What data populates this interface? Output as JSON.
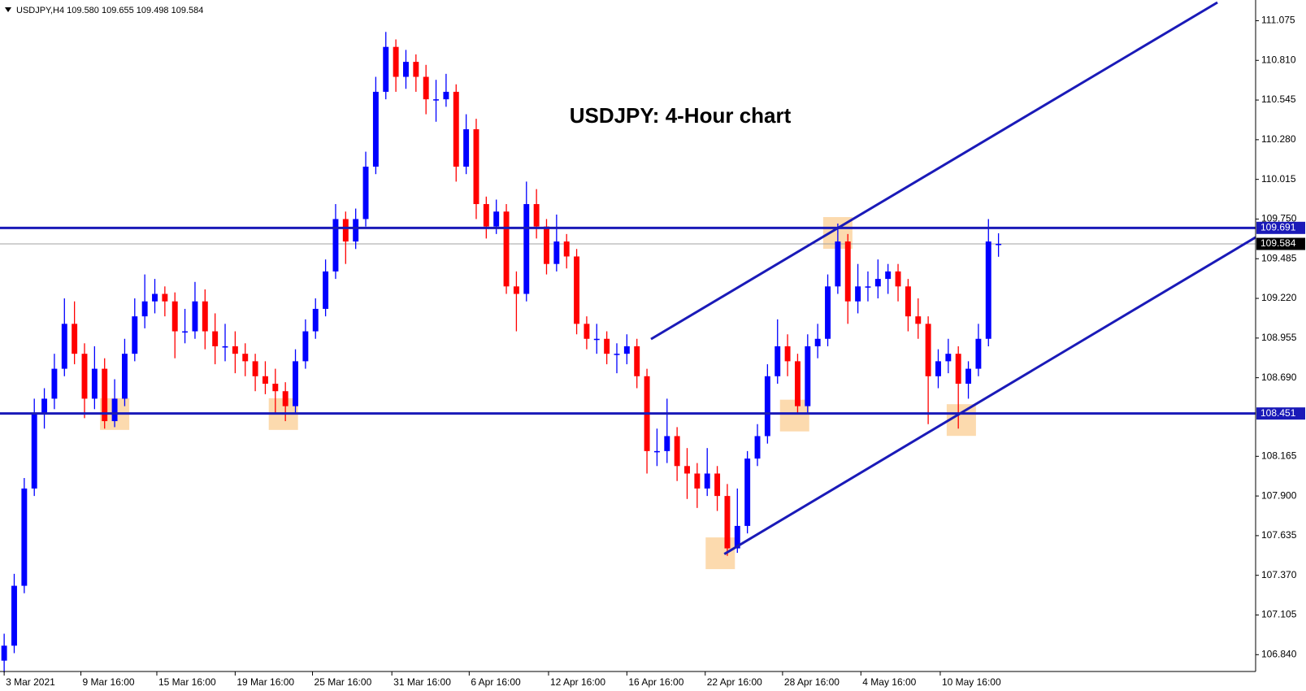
{
  "chart_data": {
    "type": "candlestick",
    "header": "USDJPY,H4  109.580 109.655 109.498 109.584",
    "title": "USDJPY: 4-Hour chart",
    "up_color": "#0000ff",
    "down_color": "#ff0000",
    "line_color": "#1a1ab8",
    "highlight_color": "#fbd3a0",
    "xlim": [
      -0.415,
      124.6
    ],
    "ylim": [
      106.733,
      111.197
    ],
    "yticks": [
      111.075,
      {
        "value": 110.81,
        "label": "110.810"
      },
      110.545,
      {
        "value": 110.28,
        "label": "110.280"
      },
      110.015,
      {
        "value": 109.75,
        "label": "109.750"
      },
      109.485,
      {
        "value": 109.22,
        "label": "109.220"
      },
      108.955,
      {
        "value": 108.69,
        "label": "108.690"
      },
      108.165,
      {
        "value": 107.9,
        "label": "107.900"
      },
      107.635,
      {
        "value": 107.37,
        "label": "107.370"
      },
      107.105,
      {
        "value": 106.84,
        "label": "106.840"
      }
    ],
    "xticks": [
      {
        "value": 0,
        "label": "3 Mar 2021"
      },
      {
        "value": 7.64,
        "label": "9 Mar 16:00"
      },
      {
        "value": 15.2,
        "label": "15 Mar 16:00"
      },
      {
        "value": 23.0,
        "label": "19 Mar 16:00"
      },
      {
        "value": 30.7,
        "label": "25 Mar 16:00"
      },
      {
        "value": 38.6,
        "label": "31 Mar 16:00"
      },
      {
        "value": 46.3,
        "label": "6 Apr 16:00"
      },
      {
        "value": 54.2,
        "label": "12 Apr 16:00"
      },
      {
        "value": 62.0,
        "label": "16 Apr 16:00"
      },
      {
        "value": 69.8,
        "label": "22 Apr 16:00"
      },
      {
        "value": 77.5,
        "label": "28 Apr 16:00"
      },
      {
        "value": 85.3,
        "label": "4 May 16:00"
      },
      {
        "value": 93.2,
        "label": "10 May 16:00"
      }
    ],
    "levels": [
      109.691,
      108.451
    ],
    "current_price": 109.584,
    "trendlines": [
      {
        "x": [
          64.4,
          120.8
        ],
        "y": [
          108.948,
          111.197
        ]
      },
      {
        "x": [
          71.7,
          124.6
        ],
        "y": [
          107.512,
          109.628
        ]
      }
    ],
    "highlights": [
      {
        "x": 11.0,
        "y": 108.45
      },
      {
        "x": 27.8,
        "y": 108.45
      },
      {
        "x": 71.3,
        "y": 107.52
      },
      {
        "x": 78.7,
        "y": 108.44
      },
      {
        "x": 83.0,
        "y": 109.66
      },
      {
        "x": 95.3,
        "y": 108.41
      }
    ],
    "ohlc": [
      [
        106.8,
        106.98,
        106.72,
        106.9
      ],
      [
        106.9,
        107.38,
        106.85,
        107.3
      ],
      [
        107.3,
        108.02,
        107.25,
        107.95
      ],
      [
        107.95,
        108.55,
        107.9,
        108.45
      ],
      [
        108.45,
        108.62,
        108.35,
        108.55
      ],
      [
        108.55,
        108.85,
        108.48,
        108.75
      ],
      [
        108.75,
        109.22,
        108.7,
        109.05
      ],
      [
        109.05,
        109.2,
        108.78,
        108.85
      ],
      [
        108.85,
        108.92,
        108.42,
        108.55
      ],
      [
        108.55,
        108.9,
        108.48,
        108.75
      ],
      [
        108.75,
        108.82,
        108.35,
        108.4
      ],
      [
        108.4,
        108.68,
        108.36,
        108.55
      ],
      [
        108.55,
        108.95,
        108.5,
        108.85
      ],
      [
        108.85,
        109.22,
        108.8,
        109.1
      ],
      [
        109.1,
        109.38,
        109.02,
        109.2
      ],
      [
        109.2,
        109.35,
        109.12,
        109.25
      ],
      [
        109.25,
        109.3,
        109.1,
        109.2
      ],
      [
        109.2,
        109.26,
        108.82,
        109.0
      ],
      [
        109.0,
        109.15,
        108.92,
        109.0
      ],
      [
        109.0,
        109.33,
        108.95,
        109.2
      ],
      [
        109.2,
        109.28,
        108.88,
        109.0
      ],
      [
        109.0,
        109.12,
        108.78,
        108.9
      ],
      [
        108.9,
        109.05,
        108.8,
        108.9
      ],
      [
        108.9,
        109.0,
        108.72,
        108.85
      ],
      [
        108.85,
        108.92,
        108.7,
        108.8
      ],
      [
        108.8,
        108.85,
        108.6,
        108.7
      ],
      [
        108.7,
        108.8,
        108.58,
        108.65
      ],
      [
        108.65,
        108.75,
        108.45,
        108.6
      ],
      [
        108.6,
        108.66,
        108.4,
        108.5
      ],
      [
        108.5,
        108.88,
        108.45,
        108.8
      ],
      [
        108.8,
        109.08,
        108.75,
        109.0
      ],
      [
        109.0,
        109.22,
        108.95,
        109.15
      ],
      [
        109.15,
        109.48,
        109.1,
        109.4
      ],
      [
        109.4,
        109.85,
        109.35,
        109.75
      ],
      [
        109.75,
        109.8,
        109.45,
        109.6
      ],
      [
        109.6,
        109.82,
        109.55,
        109.75
      ],
      [
        109.75,
        110.2,
        109.7,
        110.1
      ],
      [
        110.1,
        110.7,
        110.05,
        110.6
      ],
      [
        110.6,
        111.0,
        110.55,
        110.9
      ],
      [
        110.9,
        110.95,
        110.6,
        110.7
      ],
      [
        110.7,
        110.88,
        110.62,
        110.8
      ],
      [
        110.8,
        110.85,
        110.6,
        110.7
      ],
      [
        110.7,
        110.78,
        110.45,
        110.55
      ],
      [
        110.55,
        110.68,
        110.4,
        110.55
      ],
      [
        110.55,
        110.72,
        110.5,
        110.6
      ],
      [
        110.6,
        110.65,
        110.0,
        110.1
      ],
      [
        110.1,
        110.45,
        110.05,
        110.35
      ],
      [
        110.35,
        110.42,
        109.75,
        109.85
      ],
      [
        109.85,
        109.9,
        109.62,
        109.7
      ],
      [
        109.7,
        109.88,
        109.65,
        109.8
      ],
      [
        109.8,
        109.85,
        109.25,
        109.3
      ],
      [
        109.3,
        109.4,
        109.0,
        109.25
      ],
      [
        109.25,
        110.0,
        109.2,
        109.85
      ],
      [
        109.85,
        109.95,
        109.62,
        109.7
      ],
      [
        109.7,
        109.75,
        109.38,
        109.45
      ],
      [
        109.45,
        109.78,
        109.4,
        109.6
      ],
      [
        109.6,
        109.65,
        109.42,
        109.5
      ],
      [
        109.5,
        109.55,
        108.98,
        109.05
      ],
      [
        109.05,
        109.1,
        108.88,
        108.95
      ],
      [
        108.95,
        109.05,
        108.85,
        108.95
      ],
      [
        108.95,
        109.0,
        108.78,
        108.85
      ],
      [
        108.85,
        108.92,
        108.72,
        108.85
      ],
      [
        108.85,
        108.98,
        108.78,
        108.9
      ],
      [
        108.9,
        108.95,
        108.62,
        108.7
      ],
      [
        108.7,
        108.75,
        108.05,
        108.2
      ],
      [
        108.2,
        108.35,
        108.1,
        108.2
      ],
      [
        108.2,
        108.55,
        108.12,
        108.3
      ],
      [
        108.3,
        108.36,
        108.0,
        108.1
      ],
      [
        108.1,
        108.22,
        107.88,
        108.05
      ],
      [
        108.05,
        108.12,
        107.82,
        107.95
      ],
      [
        107.95,
        108.22,
        107.9,
        108.05
      ],
      [
        108.05,
        108.1,
        107.8,
        107.9
      ],
      [
        107.9,
        107.98,
        107.5,
        107.55
      ],
      [
        107.55,
        107.95,
        107.52,
        107.7
      ],
      [
        107.7,
        108.2,
        107.65,
        108.15
      ],
      [
        108.15,
        108.38,
        108.1,
        108.3
      ],
      [
        108.3,
        108.78,
        108.25,
        108.7
      ],
      [
        108.7,
        109.08,
        108.65,
        108.9
      ],
      [
        108.9,
        108.98,
        108.7,
        108.8
      ],
      [
        108.8,
        108.85,
        108.45,
        108.5
      ],
      [
        108.5,
        108.98,
        108.45,
        108.9
      ],
      [
        108.9,
        109.05,
        108.82,
        108.95
      ],
      [
        108.95,
        109.38,
        108.9,
        109.3
      ],
      [
        109.3,
        109.72,
        109.25,
        109.6
      ],
      [
        109.6,
        109.65,
        109.05,
        109.2
      ],
      [
        109.2,
        109.45,
        109.12,
        109.3
      ],
      [
        109.3,
        109.4,
        109.2,
        109.3
      ],
      [
        109.3,
        109.48,
        109.22,
        109.35
      ],
      [
        109.35,
        109.45,
        109.25,
        109.4
      ],
      [
        109.4,
        109.45,
        109.2,
        109.3
      ],
      [
        109.3,
        109.35,
        109.0,
        109.1
      ],
      [
        109.1,
        109.22,
        108.95,
        109.05
      ],
      [
        109.05,
        109.1,
        108.38,
        108.7
      ],
      [
        108.7,
        108.88,
        108.62,
        108.8
      ],
      [
        108.8,
        108.95,
        108.72,
        108.85
      ],
      [
        108.85,
        108.9,
        108.35,
        108.65
      ],
      [
        108.65,
        108.8,
        108.55,
        108.75
      ],
      [
        108.75,
        109.05,
        108.7,
        108.95
      ],
      [
        108.95,
        109.75,
        108.9,
        109.6
      ],
      [
        109.58,
        109.655,
        109.498,
        109.584
      ]
    ]
  }
}
